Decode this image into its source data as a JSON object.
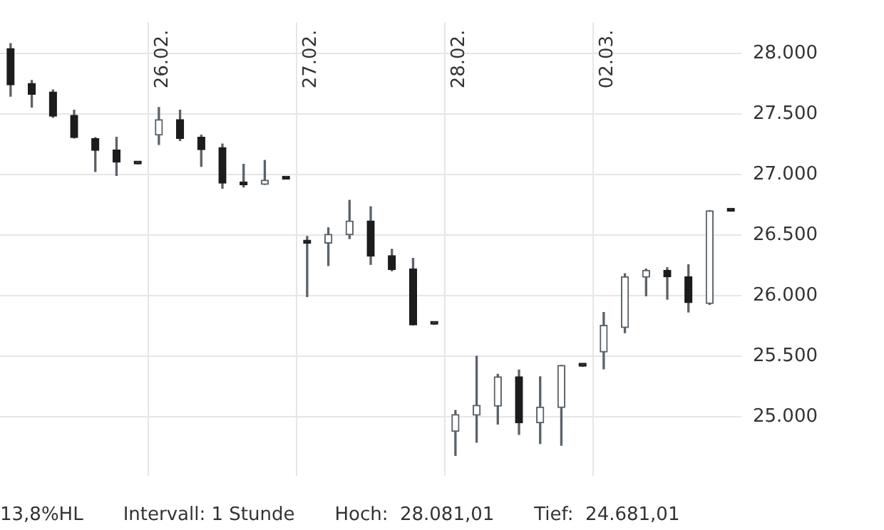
{
  "chart_data": {
    "type": "candlestick",
    "categories": [
      null,
      null,
      null,
      null,
      null,
      null,
      null,
      "26.02.",
      null,
      null,
      null,
      null,
      null,
      null,
      "27.02.",
      null,
      null,
      null,
      null,
      null,
      null,
      "28.02.",
      null,
      null,
      null,
      null,
      null,
      null,
      "02.03.",
      null,
      null,
      null,
      null,
      null,
      null
    ],
    "ohlc": [
      [
        28040,
        28081,
        27646,
        27740
      ],
      [
        27752,
        27777,
        27556,
        27663
      ],
      [
        27681,
        27699,
        27471,
        27482
      ],
      [
        27489,
        27532,
        27301,
        27305
      ],
      [
        27298,
        27305,
        27024,
        27199
      ],
      [
        27202,
        27308,
        26992,
        27103
      ],
      [
        27092,
        27092,
        27088,
        27088
      ],
      [
        27326,
        27553,
        27248,
        27454
      ],
      [
        27454,
        27532,
        27280,
        27298
      ],
      [
        27308,
        27326,
        27067,
        27205
      ],
      [
        27223,
        27252,
        26886,
        26929
      ],
      [
        26936,
        27085,
        26897,
        26915
      ],
      [
        26918,
        27117,
        26918,
        26954
      ],
      [
        26967,
        26967,
        26963,
        26963
      ],
      [
        26438,
        26489,
        25992,
        26434
      ],
      [
        26433,
        26560,
        26248,
        26507
      ],
      [
        26503,
        26787,
        26471,
        26617
      ],
      [
        26617,
        26734,
        26258,
        26326
      ],
      [
        26330,
        26383,
        26205,
        26216
      ],
      [
        26220,
        26308,
        25758,
        25758
      ],
      [
        25768,
        25768,
        25764,
        25764
      ],
      [
        24879,
        25053,
        24681,
        25018
      ],
      [
        25013,
        25500,
        24790,
        25095
      ],
      [
        25088,
        25351,
        24939,
        25330
      ],
      [
        25330,
        25386,
        24854,
        24950
      ],
      [
        24950,
        25330,
        24779,
        25081
      ],
      [
        25077,
        25425,
        24765,
        25425
      ],
      [
        25422,
        25422,
        25418,
        25418
      ],
      [
        25535,
        25861,
        25396,
        25755
      ],
      [
        25737,
        26181,
        25694,
        26156
      ],
      [
        26152,
        26220,
        25999,
        26209
      ],
      [
        26209,
        26231,
        25971,
        26156
      ],
      [
        26156,
        26255,
        25865,
        25943
      ],
      [
        25935,
        26702,
        25928,
        26700
      ],
      [
        26702,
        26702,
        26698,
        26698
      ]
    ],
    "ylim": [
      24510,
      28255
    ],
    "yticks": [
      {
        "value": 25000,
        "label": "25.000"
      },
      {
        "value": 25500,
        "label": "25.500"
      },
      {
        "value": 26000,
        "label": "26.000"
      },
      {
        "value": 26500,
        "label": "26.500"
      },
      {
        "value": 27000,
        "label": "27.000"
      },
      {
        "value": 27500,
        "label": "27.500"
      },
      {
        "value": 28000,
        "label": "28.000"
      }
    ],
    "grid": true,
    "annotations": [
      "13,8%HL",
      "Intervall: 1 Stunde",
      "Hoch:  28.081,01",
      "Tief:  24.681,01"
    ]
  }
}
